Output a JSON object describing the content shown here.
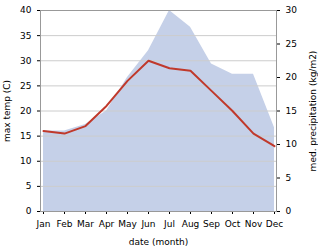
{
  "chart_data": {
    "type": "line",
    "categories": [
      "Jan",
      "Feb",
      "Mar",
      "Apr",
      "May",
      "Jun",
      "Jul",
      "Aug",
      "Sep",
      "Oct",
      "Nov",
      "Dec"
    ],
    "xlabel": "date (month)",
    "ylabel": "max temp (C)",
    "y2label": "med. precipitation (kg/m2)",
    "series": [
      {
        "type": "area",
        "axis": "y2",
        "color": "#c5d0e8",
        "values": [
          12.0,
          12.0,
          13.0,
          15.0,
          20.0,
          24.0,
          30.0,
          27.5,
          22.0,
          20.5,
          20.5,
          12.5
        ]
      },
      {
        "type": "line",
        "color": "#c0392b",
        "values": [
          16.0,
          15.5,
          17.0,
          21.0,
          26.0,
          30.0,
          28.5,
          28.0,
          24.0,
          20.0,
          15.5,
          13.0
        ]
      }
    ],
    "ylim": [
      0,
      40
    ],
    "yticks": [
      0,
      5,
      10,
      15,
      20,
      25,
      30,
      35,
      40
    ],
    "y2lim": [
      0,
      30
    ],
    "y2ticks": [
      0,
      5,
      10,
      15,
      20,
      25,
      30
    ],
    "grid": true
  }
}
